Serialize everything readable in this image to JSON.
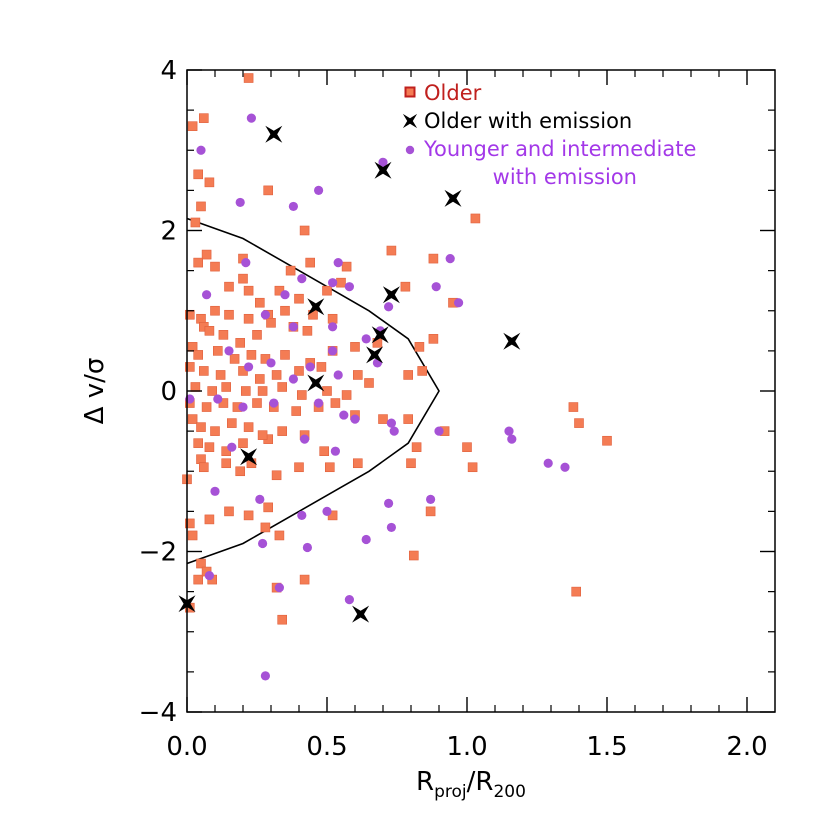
{
  "chart_data": {
    "type": "scatter",
    "title": "",
    "xlabel": {
      "main": "R",
      "sub1": "proj",
      "sep": "/R",
      "sub2": "200"
    },
    "ylabel": "Δ v/σ",
    "xlim": [
      0,
      2.1
    ],
    "ylim": [
      -4,
      4
    ],
    "x_ticks": [
      {
        "value": 0,
        "label": "0.0"
      },
      {
        "value": 0.5,
        "label": "0.5"
      },
      {
        "value": 1.0,
        "label": "1.0"
      },
      {
        "value": 1.5,
        "label": "1.5"
      },
      {
        "value": 2.0,
        "label": "2.0"
      }
    ],
    "y_ticks": [
      {
        "value": 4,
        "label": "4"
      },
      {
        "value": 2,
        "label": "2"
      },
      {
        "value": 0,
        "label": "0"
      },
      {
        "value": -2,
        "label": "−2"
      },
      {
        "value": -4,
        "label": "−4"
      }
    ],
    "grid": false,
    "legend_position": "top-right",
    "series": [
      {
        "name": "Older",
        "marker": "square",
        "color": "#f47c54",
        "legend_color": "#c0201e",
        "points": [
          [
            0.22,
            3.9
          ],
          [
            0.06,
            3.4
          ],
          [
            0.02,
            3.3
          ],
          [
            0.04,
            2.7
          ],
          [
            0.08,
            2.6
          ],
          [
            0.05,
            2.3
          ],
          [
            0.03,
            2.1
          ],
          [
            0.29,
            2.5
          ],
          [
            0.42,
            2.0
          ],
          [
            1.03,
            2.15
          ],
          [
            0.07,
            1.7
          ],
          [
            0.04,
            1.6
          ],
          [
            0.1,
            1.55
          ],
          [
            0.2,
            1.65
          ],
          [
            0.2,
            1.4
          ],
          [
            0.37,
            1.5
          ],
          [
            0.44,
            1.6
          ],
          [
            0.57,
            1.55
          ],
          [
            0.73,
            1.75
          ],
          [
            0.88,
            1.65
          ],
          [
            0.15,
            1.3
          ],
          [
            0.22,
            1.25
          ],
          [
            0.26,
            1.1
          ],
          [
            0.33,
            1.25
          ],
          [
            0.4,
            1.15
          ],
          [
            0.5,
            1.25
          ],
          [
            0.55,
            1.35
          ],
          [
            0.78,
            1.3
          ],
          [
            0.95,
            1.1
          ],
          [
            0.01,
            0.95
          ],
          [
            0.05,
            0.9
          ],
          [
            0.1,
            1.0
          ],
          [
            0.15,
            0.95
          ],
          [
            0.22,
            0.9
          ],
          [
            0.29,
            0.95
          ],
          [
            0.35,
            1.0
          ],
          [
            0.45,
            0.95
          ],
          [
            0.52,
            0.9
          ],
          [
            0.06,
            0.8
          ],
          [
            0.08,
            0.75
          ],
          [
            0.13,
            0.7
          ],
          [
            0.19,
            0.6
          ],
          [
            0.25,
            0.7
          ],
          [
            0.3,
            0.85
          ],
          [
            0.38,
            0.8
          ],
          [
            0.43,
            0.75
          ],
          [
            0.83,
            0.55
          ],
          [
            0.88,
            0.65
          ],
          [
            0.02,
            0.55
          ],
          [
            0.04,
            0.45
          ],
          [
            0.11,
            0.5
          ],
          [
            0.17,
            0.4
          ],
          [
            0.23,
            0.45
          ],
          [
            0.28,
            0.4
          ],
          [
            0.35,
            0.45
          ],
          [
            0.44,
            0.35
          ],
          [
            0.52,
            0.5
          ],
          [
            0.6,
            0.55
          ],
          [
            0.68,
            0.6
          ],
          [
            0.01,
            0.3
          ],
          [
            0.06,
            0.25
          ],
          [
            0.12,
            0.2
          ],
          [
            0.2,
            0.25
          ],
          [
            0.26,
            0.15
          ],
          [
            0.32,
            0.2
          ],
          [
            0.4,
            0.25
          ],
          [
            0.48,
            0.3
          ],
          [
            0.61,
            0.2
          ],
          [
            0.79,
            0.2
          ],
          [
            0.84,
            0.25
          ],
          [
            0.03,
            0.05
          ],
          [
            0.09,
            0.0
          ],
          [
            0.14,
            0.05
          ],
          [
            0.21,
            0.0
          ],
          [
            0.27,
            0.0
          ],
          [
            0.34,
            0.05
          ],
          [
            0.41,
            -0.05
          ],
          [
            0.5,
            0.0
          ],
          [
            0.57,
            -0.05
          ],
          [
            0.65,
            0.1
          ],
          [
            0.01,
            -0.15
          ],
          [
            0.07,
            -0.2
          ],
          [
            0.13,
            -0.15
          ],
          [
            0.18,
            -0.2
          ],
          [
            0.25,
            -0.15
          ],
          [
            0.31,
            -0.2
          ],
          [
            0.39,
            -0.25
          ],
          [
            0.47,
            -0.2
          ],
          [
            0.53,
            -0.15
          ],
          [
            0.6,
            -0.3
          ],
          [
            0.7,
            -0.35
          ],
          [
            0.79,
            -0.35
          ],
          [
            0.92,
            -0.5
          ],
          [
            1.38,
            -0.2
          ],
          [
            1.4,
            -0.4
          ],
          [
            0.02,
            -0.35
          ],
          [
            0.05,
            -0.45
          ],
          [
            0.1,
            -0.5
          ],
          [
            0.16,
            -0.4
          ],
          [
            0.22,
            -0.45
          ],
          [
            0.29,
            -0.6
          ],
          [
            0.34,
            -0.5
          ],
          [
            0.42,
            -0.55
          ],
          [
            0.04,
            -0.65
          ],
          [
            0.08,
            -0.7
          ],
          [
            0.14,
            -0.75
          ],
          [
            0.2,
            -0.65
          ],
          [
            0.27,
            -0.55
          ],
          [
            0.82,
            -0.7
          ],
          [
            1.0,
            -0.7
          ],
          [
            0.05,
            -0.85
          ],
          [
            0.06,
            -0.95
          ],
          [
            0.14,
            -0.9
          ],
          [
            0.19,
            -1.0
          ],
          [
            0.23,
            -0.9
          ],
          [
            0.32,
            -1.05
          ],
          [
            0.4,
            -0.95
          ],
          [
            0.49,
            -0.75
          ],
          [
            0.51,
            -0.95
          ],
          [
            0.61,
            -0.9
          ],
          [
            0.8,
            -0.9
          ],
          [
            1.02,
            -0.95
          ],
          [
            1.5,
            -0.62
          ],
          [
            0.0,
            -1.1
          ],
          [
            0.15,
            -1.5
          ],
          [
            0.22,
            -1.55
          ],
          [
            0.28,
            -1.7
          ],
          [
            0.29,
            -1.45
          ],
          [
            0.52,
            -1.55
          ],
          [
            0.87,
            -1.5
          ],
          [
            0.01,
            -1.65
          ],
          [
            0.02,
            -1.8
          ],
          [
            0.08,
            -1.6
          ],
          [
            0.33,
            -1.8
          ],
          [
            0.05,
            -2.15
          ],
          [
            0.04,
            -2.35
          ],
          [
            0.07,
            -2.25
          ],
          [
            0.09,
            -2.35
          ],
          [
            0.32,
            -2.45
          ],
          [
            0.42,
            -2.35
          ],
          [
            0.81,
            -2.05
          ],
          [
            1.39,
            -2.5
          ],
          [
            0.01,
            -2.7
          ],
          [
            0.34,
            -2.85
          ]
        ]
      },
      {
        "name": "Older with emission",
        "marker": "star4",
        "color": "#000000",
        "legend_color": "#000000",
        "points": [
          [
            0.31,
            3.2
          ],
          [
            0.7,
            2.75
          ],
          [
            0.95,
            2.4
          ],
          [
            0.46,
            1.05
          ],
          [
            0.73,
            1.2
          ],
          [
            0.69,
            0.7
          ],
          [
            0.67,
            0.45
          ],
          [
            1.16,
            0.62
          ],
          [
            0.46,
            0.1
          ],
          [
            0.22,
            -0.82
          ],
          [
            0.0,
            -2.65
          ],
          [
            0.62,
            -2.78
          ]
        ]
      },
      {
        "name": "Younger and intermediate",
        "name_line2": "with emission",
        "marker": "circle",
        "color": "#a652d6",
        "legend_color": "#a338e8",
        "points": [
          [
            0.23,
            3.4
          ],
          [
            0.05,
            3.0
          ],
          [
            0.7,
            2.85
          ],
          [
            0.19,
            2.35
          ],
          [
            0.38,
            2.3
          ],
          [
            0.47,
            2.5
          ],
          [
            0.54,
            1.6
          ],
          [
            0.21,
            1.6
          ],
          [
            0.41,
            1.4
          ],
          [
            0.52,
            1.35
          ],
          [
            0.58,
            1.3
          ],
          [
            0.72,
            1.05
          ],
          [
            0.89,
            1.3
          ],
          [
            0.94,
            1.65
          ],
          [
            0.97,
            1.1
          ],
          [
            0.07,
            1.2
          ],
          [
            0.35,
            1.2
          ],
          [
            0.28,
            0.95
          ],
          [
            0.38,
            0.8
          ],
          [
            0.52,
            0.8
          ],
          [
            0.64,
            0.65
          ],
          [
            0.69,
            0.75
          ],
          [
            0.15,
            0.5
          ],
          [
            0.22,
            0.3
          ],
          [
            0.3,
            0.35
          ],
          [
            0.44,
            0.3
          ],
          [
            0.52,
            0.5
          ],
          [
            0.68,
            0.35
          ],
          [
            0.38,
            0.15
          ],
          [
            0.54,
            0.2
          ],
          [
            0.01,
            -0.1
          ],
          [
            0.11,
            -0.1
          ],
          [
            0.2,
            -0.2
          ],
          [
            0.31,
            -0.15
          ],
          [
            0.47,
            -0.15
          ],
          [
            0.56,
            -0.3
          ],
          [
            0.6,
            -0.35
          ],
          [
            0.73,
            -0.4
          ],
          [
            0.74,
            -0.5
          ],
          [
            1.15,
            -0.5
          ],
          [
            1.16,
            -0.6
          ],
          [
            0.42,
            -0.6
          ],
          [
            0.16,
            -0.7
          ],
          [
            0.53,
            -0.75
          ],
          [
            0.9,
            -0.5
          ],
          [
            1.29,
            -0.9
          ],
          [
            1.35,
            -0.95
          ],
          [
            0.1,
            -1.25
          ],
          [
            0.26,
            -1.35
          ],
          [
            0.41,
            -1.55
          ],
          [
            0.5,
            -1.5
          ],
          [
            0.72,
            -1.4
          ],
          [
            0.87,
            -1.35
          ],
          [
            0.27,
            -1.9
          ],
          [
            0.43,
            -1.95
          ],
          [
            0.64,
            -1.85
          ],
          [
            0.73,
            -1.7
          ],
          [
            0.08,
            -2.3
          ],
          [
            0.33,
            -2.45
          ],
          [
            0.58,
            -2.6
          ],
          [
            0.28,
            -3.55
          ]
        ]
      }
    ],
    "boundary_curve": [
      [
        0.0,
        2.15
      ],
      [
        0.2,
        1.9
      ],
      [
        0.4,
        1.5
      ],
      [
        0.55,
        1.2
      ],
      [
        0.65,
        1.0
      ],
      [
        0.79,
        0.65
      ],
      [
        0.9,
        0.0
      ],
      [
        0.79,
        -0.65
      ],
      [
        0.65,
        -1.0
      ],
      [
        0.55,
        -1.2
      ],
      [
        0.4,
        -1.5
      ],
      [
        0.2,
        -1.9
      ],
      [
        0.0,
        -2.15
      ]
    ]
  }
}
